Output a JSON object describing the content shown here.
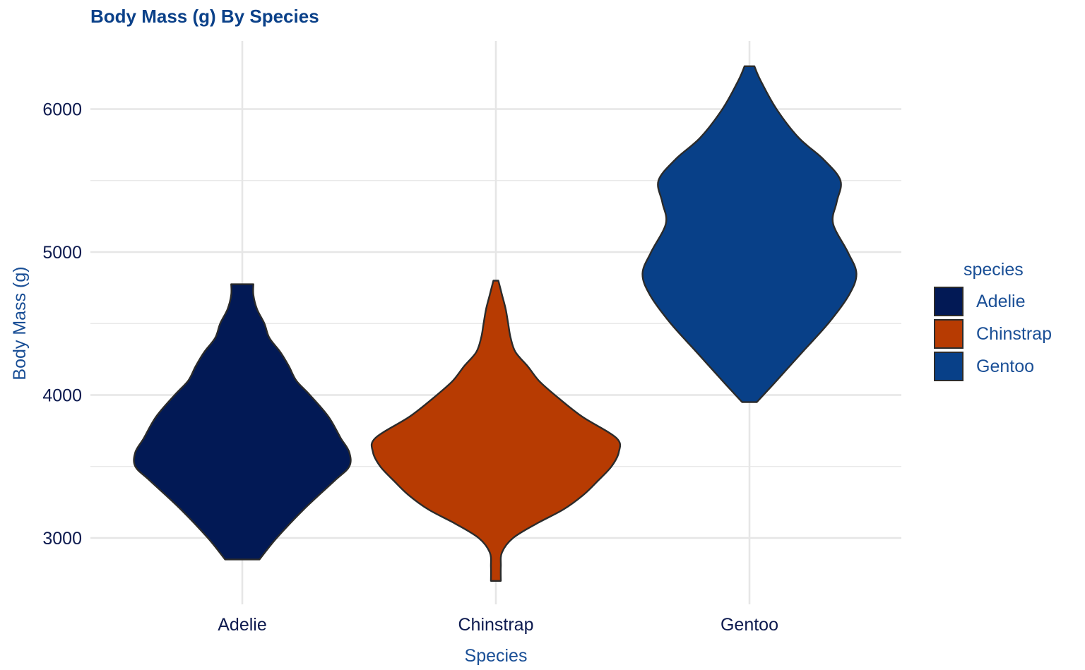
{
  "chart_data": {
    "type": "violin",
    "title": "Body Mass (g) By Species",
    "xlabel": "Species",
    "ylabel": "Body Mass (g)",
    "categories": [
      "Adelie",
      "Chinstrap",
      "Gentoo"
    ],
    "ylim": [
      2550,
      6500
    ],
    "yticks": [
      3000,
      4000,
      5000,
      6000
    ],
    "yticks_minor": [
      3500,
      4500,
      5500
    ],
    "grid": true,
    "legend": {
      "title": "species",
      "position": "right",
      "entries": [
        "Adelie",
        "Chinstrap",
        "Gentoo"
      ]
    },
    "colors": {
      "Adelie": "#021955",
      "Chinstrap": "#b73b02",
      "Gentoo": "#084088",
      "outline": "#2b2b2b",
      "grid": "#e6e6e6"
    },
    "series": [
      {
        "name": "Adelie",
        "min": 2850,
        "max": 4775,
        "density_profile": [
          [
            2850,
            0.14
          ],
          [
            3000,
            0.28
          ],
          [
            3200,
            0.5
          ],
          [
            3400,
            0.75
          ],
          [
            3500,
            0.87
          ],
          [
            3600,
            0.87
          ],
          [
            3700,
            0.8
          ],
          [
            3850,
            0.7
          ],
          [
            4000,
            0.55
          ],
          [
            4100,
            0.44
          ],
          [
            4200,
            0.38
          ],
          [
            4300,
            0.31
          ],
          [
            4400,
            0.22
          ],
          [
            4500,
            0.18
          ],
          [
            4600,
            0.12
          ],
          [
            4700,
            0.09
          ],
          [
            4775,
            0.09
          ]
        ]
      },
      {
        "name": "Chinstrap",
        "min": 2700,
        "max": 4800,
        "density_profile": [
          [
            2700,
            0.04
          ],
          [
            2800,
            0.04
          ],
          [
            2900,
            0.05
          ],
          [
            3000,
            0.14
          ],
          [
            3100,
            0.33
          ],
          [
            3200,
            0.55
          ],
          [
            3300,
            0.71
          ],
          [
            3400,
            0.83
          ],
          [
            3500,
            0.94
          ],
          [
            3600,
            1.0
          ],
          [
            3700,
            0.98
          ],
          [
            3850,
            0.7
          ],
          [
            4000,
            0.48
          ],
          [
            4100,
            0.35
          ],
          [
            4200,
            0.26
          ],
          [
            4300,
            0.16
          ],
          [
            4400,
            0.12
          ],
          [
            4500,
            0.1
          ],
          [
            4600,
            0.08
          ],
          [
            4700,
            0.05
          ],
          [
            4800,
            0.02
          ]
        ]
      },
      {
        "name": "Gentoo",
        "min": 3950,
        "max": 6300,
        "density_profile": [
          [
            3950,
            0.06
          ],
          [
            4100,
            0.22
          ],
          [
            4300,
            0.43
          ],
          [
            4500,
            0.64
          ],
          [
            4700,
            0.81
          ],
          [
            4850,
            0.87
          ],
          [
            5000,
            0.8
          ],
          [
            5200,
            0.68
          ],
          [
            5350,
            0.71
          ],
          [
            5500,
            0.74
          ],
          [
            5650,
            0.6
          ],
          [
            5800,
            0.4
          ],
          [
            6000,
            0.22
          ],
          [
            6200,
            0.09
          ],
          [
            6300,
            0.04
          ]
        ]
      }
    ]
  }
}
